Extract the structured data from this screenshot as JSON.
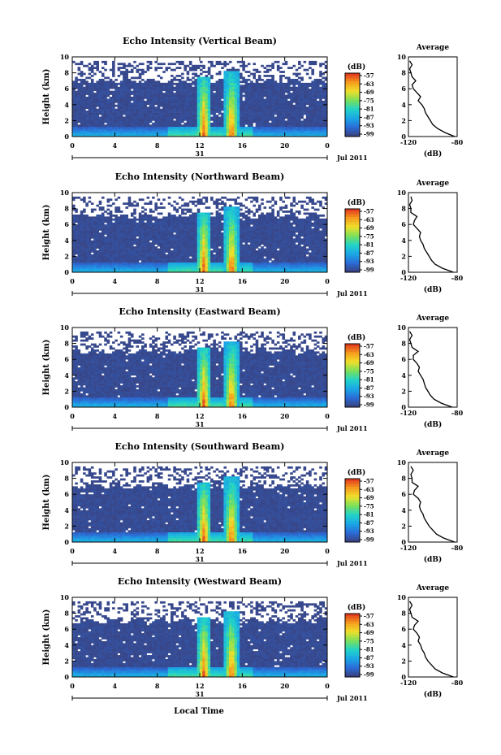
{
  "figure": {
    "xlabel": "Local Time",
    "date_label": "Jul 2011",
    "day_label": "31",
    "colorbar_unit": "(dB)",
    "colorbar_ticks": [
      "-57",
      "-63",
      "-69",
      "-75",
      "-81",
      "-87",
      "-93",
      "-99"
    ],
    "avg_title": "Average",
    "avg_xlabel": "(dB)",
    "colors": {
      "background_echo": "#3a3f7a",
      "colormap": [
        "#3a3f7a",
        "#2b6bd6",
        "#1aa6e6",
        "#22d3c8",
        "#7be05a",
        "#f0e02a",
        "#f59a1e",
        "#e0301e"
      ]
    }
  },
  "chart_data": [
    {
      "type": "heatmap",
      "title": "Echo Intensity (Vertical Beam)",
      "ylabel": "Height (km)",
      "xlim": [
        0,
        24
      ],
      "ylim": [
        0,
        10
      ],
      "xticks": [
        "0",
        "4",
        "8",
        "12",
        "16",
        "20",
        "0"
      ],
      "yticks": [
        "0",
        "2",
        "4",
        "6",
        "8",
        "10"
      ],
      "clim": [
        -99,
        -57
      ],
      "avg": {
        "title": "Average",
        "xlabel": "(dB)",
        "xticks": [
          "-120",
          "-80"
        ],
        "xlim": [
          -120,
          -80
        ],
        "height": [
          0,
          0.5,
          1,
          1.5,
          2,
          2.5,
          3,
          3.5,
          4,
          4.5,
          5,
          5.5,
          6,
          6.5,
          7,
          7.5,
          8,
          8.5,
          9,
          9.5
        ],
        "value": [
          -82,
          -90,
          -96,
          -100,
          -102,
          -104,
          -106,
          -107,
          -109,
          -112,
          -110,
          -113,
          -116,
          -117,
          -114,
          -117,
          -118,
          -119,
          -117,
          -119
        ]
      }
    },
    {
      "type": "heatmap",
      "title": "Echo Intensity (Northward Beam)",
      "ylabel": "Height (km)",
      "xlim": [
        0,
        24
      ],
      "ylim": [
        0,
        10
      ],
      "xticks": [
        "0",
        "4",
        "8",
        "12",
        "16",
        "20",
        "0"
      ],
      "yticks": [
        "0",
        "2",
        "4",
        "6",
        "8",
        "10"
      ],
      "clim": [
        -99,
        -57
      ],
      "avg": {
        "title": "Average",
        "xlabel": "(dB)",
        "xticks": [
          "-120",
          "-80"
        ],
        "xlim": [
          -120,
          -80
        ],
        "height": [
          0,
          0.5,
          1,
          1.5,
          2,
          2.5,
          3,
          3.5,
          4,
          4.5,
          5,
          5.5,
          6,
          6.5,
          7,
          7.5,
          8,
          8.5,
          9,
          9.5
        ],
        "value": [
          -83,
          -92,
          -98,
          -101,
          -103,
          -105,
          -107,
          -108,
          -110,
          -111,
          -110,
          -113,
          -116,
          -115,
          -113,
          -118,
          -118,
          -119,
          -117,
          -118
        ]
      }
    },
    {
      "type": "heatmap",
      "title": "Echo Intensity (Eastward Beam)",
      "ylabel": "Height (km)",
      "xlim": [
        0,
        24
      ],
      "ylim": [
        0,
        10
      ],
      "xticks": [
        "0",
        "4",
        "8",
        "12",
        "16",
        "20",
        "0"
      ],
      "yticks": [
        "0",
        "2",
        "4",
        "6",
        "8",
        "10"
      ],
      "clim": [
        -99,
        -57
      ],
      "avg": {
        "title": "Average",
        "xlabel": "(dB)",
        "xticks": [
          "-120",
          "-80"
        ],
        "xlim": [
          -120,
          -80
        ],
        "height": [
          0,
          0.5,
          1,
          1.5,
          2,
          2.5,
          3,
          3.5,
          4,
          4.5,
          5,
          5.5,
          6,
          6.5,
          7,
          7.5,
          8,
          8.5,
          9,
          9.5
        ],
        "value": [
          -84,
          -93,
          -99,
          -102,
          -104,
          -106,
          -107,
          -108,
          -110,
          -112,
          -111,
          -113,
          -116,
          -116,
          -112,
          -117,
          -118,
          -119,
          -117,
          -119
        ]
      }
    },
    {
      "type": "heatmap",
      "title": "Echo Intensity (Southward Beam)",
      "ylabel": "Height (km)",
      "xlim": [
        0,
        24
      ],
      "ylim": [
        0,
        10
      ],
      "xticks": [
        "0",
        "4",
        "8",
        "12",
        "16",
        "20",
        "0"
      ],
      "yticks": [
        "0",
        "2",
        "4",
        "6",
        "8",
        "10"
      ],
      "clim": [
        -99,
        -57
      ],
      "avg": {
        "title": "Average",
        "xlabel": "(dB)",
        "xticks": [
          "-120",
          "-80"
        ],
        "xlim": [
          -120,
          -80
        ],
        "height": [
          0,
          0.5,
          1,
          1.5,
          2,
          2.5,
          3,
          3.5,
          4,
          4.5,
          5,
          5.5,
          6,
          6.5,
          7,
          7.5,
          8,
          8.5,
          9,
          9.5
        ],
        "value": [
          -82,
          -91,
          -97,
          -100,
          -103,
          -105,
          -107,
          -108,
          -110,
          -111,
          -110,
          -112,
          -116,
          -115,
          -112,
          -117,
          -117,
          -118,
          -116,
          -118
        ]
      }
    },
    {
      "type": "heatmap",
      "title": "Echo Intensity (Westward Beam)",
      "ylabel": "Height (km)",
      "xlim": [
        0,
        24
      ],
      "ylim": [
        0,
        10
      ],
      "xticks": [
        "0",
        "4",
        "8",
        "12",
        "16",
        "20",
        "0"
      ],
      "yticks": [
        "0",
        "2",
        "4",
        "6",
        "8",
        "10"
      ],
      "clim": [
        -99,
        -57
      ],
      "avg": {
        "title": "Average",
        "xlabel": "(dB)",
        "xticks": [
          "-120",
          "-80"
        ],
        "xlim": [
          -120,
          -80
        ],
        "height": [
          0,
          0.5,
          1,
          1.5,
          2,
          2.5,
          3,
          3.5,
          4,
          4.5,
          5,
          5.5,
          6,
          6.5,
          7,
          7.5,
          8,
          8.5,
          9,
          9.5
        ],
        "value": [
          -83,
          -92,
          -98,
          -101,
          -104,
          -106,
          -107,
          -109,
          -110,
          -112,
          -111,
          -113,
          -116,
          -115,
          -112,
          -117,
          -118,
          -119,
          -117,
          -119
        ]
      }
    }
  ]
}
